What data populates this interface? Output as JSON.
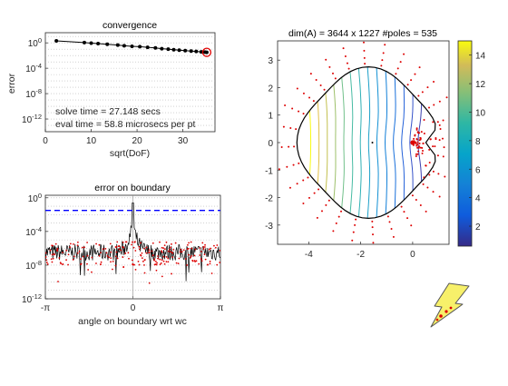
{
  "chart_data": [
    {
      "type": "line",
      "title": "convergence",
      "xlabel": "sqrt(DoF)",
      "ylabel": "error",
      "y_scale": "log",
      "xlim": [
        0,
        37
      ],
      "ylim_exp": [
        -14,
        1.6
      ],
      "x_ticks": [
        "0",
        "10",
        "20",
        "30"
      ],
      "x_tick_values": [
        0,
        10,
        20,
        30
      ],
      "y_ticks": [
        "10^0",
        "10^-4",
        "10^-8",
        "10^-12"
      ],
      "y_tick_exps": [
        0,
        -4,
        -8,
        -12
      ],
      "grid": "horizontal dotted",
      "x": [
        2.4,
        8.5,
        10,
        11.5,
        13.5,
        15.8,
        17.2,
        18.9,
        20.6,
        22.3,
        24,
        25.4,
        26.8,
        28,
        29.2,
        30.5,
        31.8,
        32.9,
        34,
        34.8,
        35.2
      ],
      "y_exp": [
        0.32,
        0.05,
        -0.04,
        -0.12,
        -0.22,
        -0.35,
        -0.45,
        -0.55,
        -0.6,
        -0.7,
        -0.8,
        -0.92,
        -1.0,
        -1.08,
        -1.15,
        -1.22,
        -1.3,
        -1.36,
        -1.42,
        -1.46,
        -1.5
      ],
      "final_point_circle_color": "#e00000",
      "annotations": [
        "solve time = 27.148 secs",
        "eval time = 58.8 microsecs per pt"
      ]
    },
    {
      "type": "scatter",
      "title": "error on boundary",
      "xlabel": "angle on boundary wrt wc",
      "y_scale": "log",
      "xlim": [
        -3.1416,
        3.1416
      ],
      "ylim_exp": [
        -12,
        0.3
      ],
      "x_ticks": [
        "-π",
        "0",
        "π"
      ],
      "x_tick_values": [
        -3.1416,
        0,
        3.1416
      ],
      "y_ticks": [
        "10^0",
        "10^-4",
        "10^-8",
        "10^-12"
      ],
      "y_tick_exps": [
        0,
        -4,
        -8,
        -12
      ],
      "grid": "horizontal dotted",
      "dashed_line_exp": -1.5,
      "dashed_line_color": "#0000ff",
      "error_band_exp": [
        -7.5,
        -5.5
      ],
      "spike_at_zero_exp": -0.6
    },
    {
      "type": "contour",
      "title": "dim(A) = 3644 x 1227   #poles = 535",
      "xlim": [
        -5.2,
        1.4
      ],
      "ylim": [
        -3.7,
        3.7
      ],
      "x_ticks": [
        "-4",
        "-2",
        "0"
      ],
      "x_tick_values": [
        -4,
        -2,
        0
      ],
      "y_ticks": [
        "3",
        "2",
        "1",
        "0",
        "-1",
        "-2",
        "-3"
      ],
      "y_tick_values": [
        3,
        2,
        1,
        0,
        -1,
        -2,
        -3
      ],
      "domain_center": [
        -1.7,
        0
      ],
      "domain_radius": 2.6,
      "notch_point": [
        0,
        0
      ],
      "contour_count": 14,
      "poles_color": "#dd0000",
      "colorbar": {
        "range": [
          0.6,
          15
        ],
        "ticks": [
          "14",
          "12",
          "10",
          "8",
          "6",
          "4",
          "2"
        ],
        "tick_values": [
          14,
          12,
          10,
          8,
          6,
          4,
          2
        ],
        "colormap": "parula"
      }
    }
  ],
  "logo": {
    "icon": "lightning-bolt-icon",
    "fill": "#f7f06a",
    "dots": "#dd0000"
  }
}
